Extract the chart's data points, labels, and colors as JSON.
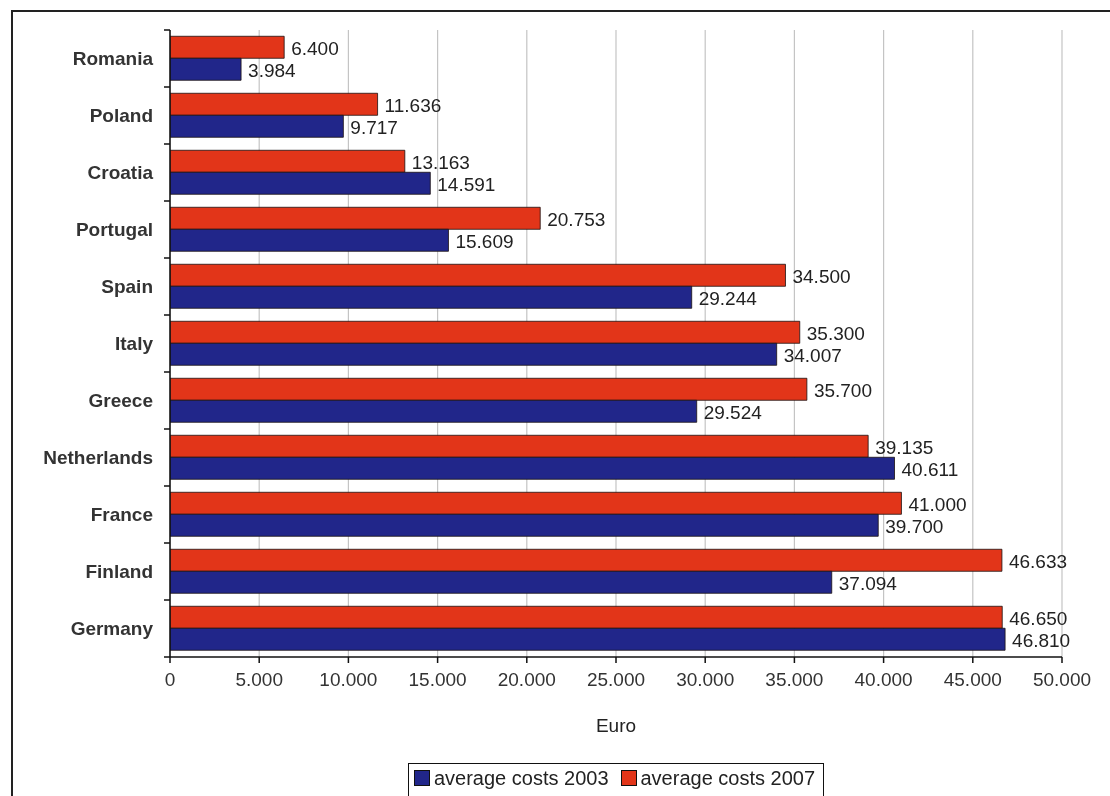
{
  "chart_data": {
    "type": "bar",
    "orientation": "horizontal",
    "xlabel": "Euro",
    "categories": [
      "Romania",
      "Poland",
      "Croatia",
      "Portugal",
      "Spain",
      "Italy",
      "Greece",
      "Netherlands",
      "France",
      "Finland",
      "Germany"
    ],
    "series": [
      {
        "name": "average costs 2003",
        "color": "#21268a",
        "values": [
          3984,
          9717,
          14591,
          15609,
          29244,
          34007,
          29524,
          40611,
          39700,
          37094,
          46810
        ],
        "value_labels": [
          "3.984",
          "9.717",
          "14.591",
          "15.609",
          "29.244",
          "34.007",
          "29.524",
          "40.611",
          "39.700",
          "37.094",
          "46.810"
        ]
      },
      {
        "name": "average costs 2007",
        "color": "#e23519",
        "values": [
          6400,
          11636,
          13163,
          20753,
          34500,
          35300,
          35700,
          39135,
          41000,
          46633,
          46650
        ],
        "value_labels": [
          "6.400",
          "11.636",
          "13.163",
          "20.753",
          "34.500",
          "35.300",
          "35.700",
          "39.135",
          "41.000",
          "46.633",
          "46.650"
        ]
      }
    ],
    "xlim": [
      0,
      50000
    ],
    "xticks": [
      0,
      {
        "value": 5000,
        "label": "5.000"
      },
      {
        "value": 10000,
        "label": "10.000"
      },
      {
        "value": 15000,
        "label": "15.000"
      },
      {
        "value": 20000,
        "label": "20.000"
      },
      {
        "value": 25000,
        "label": "25.000"
      },
      {
        "value": 30000,
        "label": "30.000"
      },
      {
        "value": 35000,
        "label": "35.000"
      },
      {
        "value": 40000,
        "label": "40.000"
      },
      {
        "value": 45000,
        "label": "45.000"
      },
      {
        "value": 50000,
        "label": "50.000"
      }
    ],
    "grid": "x",
    "legend": "bottom"
  }
}
